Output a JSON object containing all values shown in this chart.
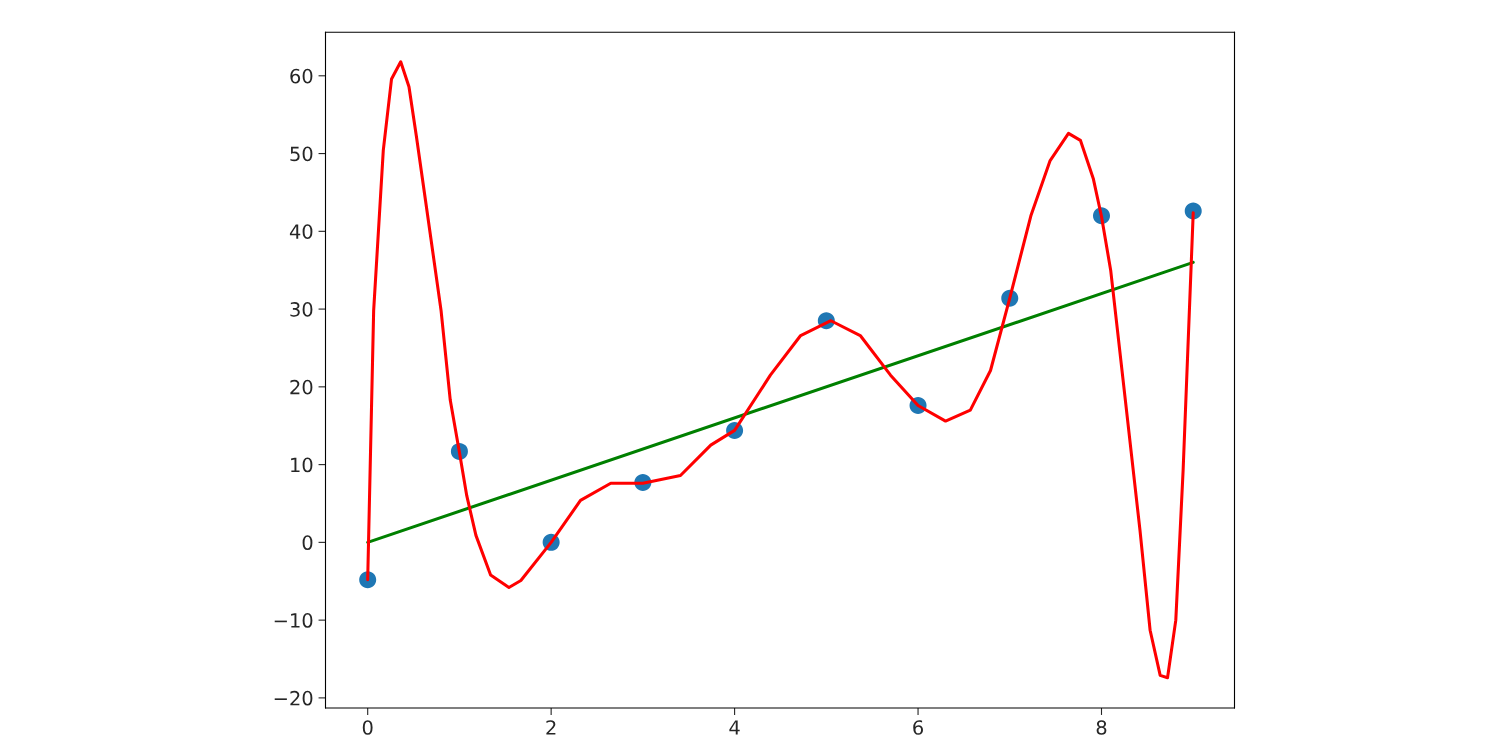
{
  "chart_data": {
    "type": "scatter",
    "grid": false,
    "legend": false,
    "xlim": [
      -0.46,
      9.45
    ],
    "ylim": [
      -21.3,
      65.6
    ],
    "xticks": [
      0,
      2,
      4,
      6,
      8
    ],
    "yticks": [
      {
        "value": -20,
        "label": "−20"
      },
      {
        "value": -10,
        "label": "−10"
      },
      0,
      10,
      20,
      30,
      40,
      50,
      60
    ],
    "series": [
      {
        "color": "#1f77b4",
        "marker": "circle",
        "x": [
          0,
          1,
          2,
          3,
          4,
          5,
          6,
          7,
          8,
          9
        ],
        "values": [
          -4.8,
          11.7,
          0,
          7.7,
          14.4,
          28.5,
          17.6,
          31.4,
          42,
          42.6
        ]
      },
      {
        "type": "line",
        "color": "#008000",
        "marker": "none",
        "line_style": "solid",
        "x": [
          0,
          9
        ],
        "values": [
          0,
          36
        ]
      },
      {
        "type": "line",
        "color": "#ff0000",
        "marker": "none",
        "line_style": "solid",
        "x": [
          0,
          0.065,
          0.17,
          0.26,
          0.36,
          0.45,
          0.53,
          0.63,
          0.8,
          0.9,
          1,
          1.08,
          1.18,
          1.34,
          1.54,
          1.67,
          2,
          2.32,
          2.65,
          3,
          3.41,
          3.74,
          4,
          4.39,
          4.72,
          5.05,
          5.37,
          5.7,
          6,
          6.3,
          6.57,
          6.79,
          7,
          7.23,
          7.44,
          7.64,
          7.77,
          7.91,
          8,
          8.1,
          8.26,
          8.42,
          8.53,
          8.64,
          8.72,
          8.81,
          8.89,
          9
        ],
        "values": [
          -4.8,
          29.8,
          50.4,
          59.6,
          61.8,
          58.6,
          52.3,
          44,
          29.8,
          18.3,
          11.6,
          6,
          0.9,
          -4.2,
          -5.8,
          -4.9,
          0,
          5.4,
          7.6,
          7.6,
          8.6,
          12.5,
          14.4,
          21.5,
          26.6,
          28.5,
          26.6,
          21.5,
          17.6,
          15.6,
          17,
          22.1,
          31.4,
          42,
          49.1,
          52.6,
          51.7,
          46.8,
          41.9,
          35,
          18.3,
          1.5,
          -11.3,
          -17.1,
          -17.4,
          -10,
          9.3,
          42.4
        ]
      }
    ]
  }
}
